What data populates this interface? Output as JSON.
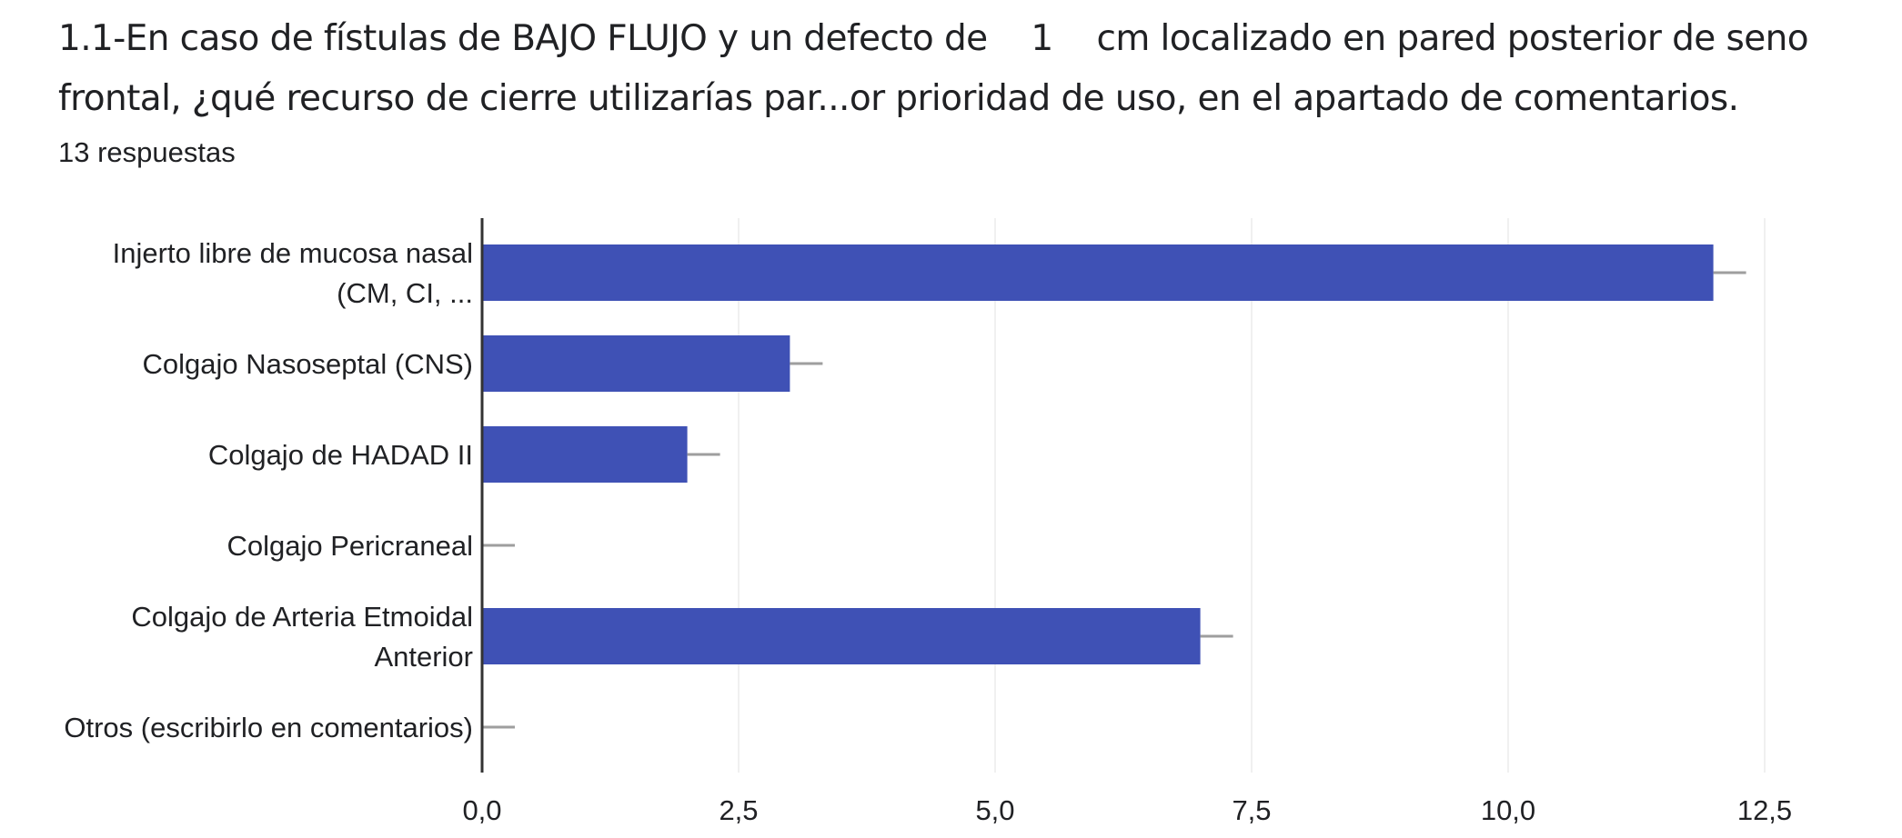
{
  "question": {
    "text_before": "1.1-En caso de fístulas de BAJO FLUJO y un defecto de",
    "defect_value": "1",
    "text_after": "cm localizado en pared posterior de seno frontal, ¿qué recurso de cierre utilizarías par...or prioridad de uso, en el apartado de comentarios."
  },
  "response_count": "13 respuestas",
  "colors": {
    "bar": "#3f51b5",
    "axis": "#333333",
    "grid": "#f0f0f0",
    "whisker": "#9e9e9e"
  },
  "chart_data": {
    "type": "bar",
    "orientation": "horizontal",
    "categories": [
      [
        "Injerto libre de mucosa nasal",
        "(CM, CI, ..."
      ],
      [
        "Colgajo Nasoseptal (CNS)"
      ],
      [
        "Colgajo de HADAD II"
      ],
      [
        "Colgajo Pericraneal"
      ],
      [
        "Colgajo de Arteria Etmoidal",
        "Anterior"
      ],
      [
        "Otros (escribirlo en comentarios)"
      ]
    ],
    "values": [
      12,
      3,
      2,
      0,
      7,
      0
    ],
    "xlim": [
      0,
      12.5
    ],
    "xticks": [
      "0,0",
      "2,5",
      "5,0",
      "7,5",
      "10,0",
      "12,5"
    ],
    "grid": true
  }
}
